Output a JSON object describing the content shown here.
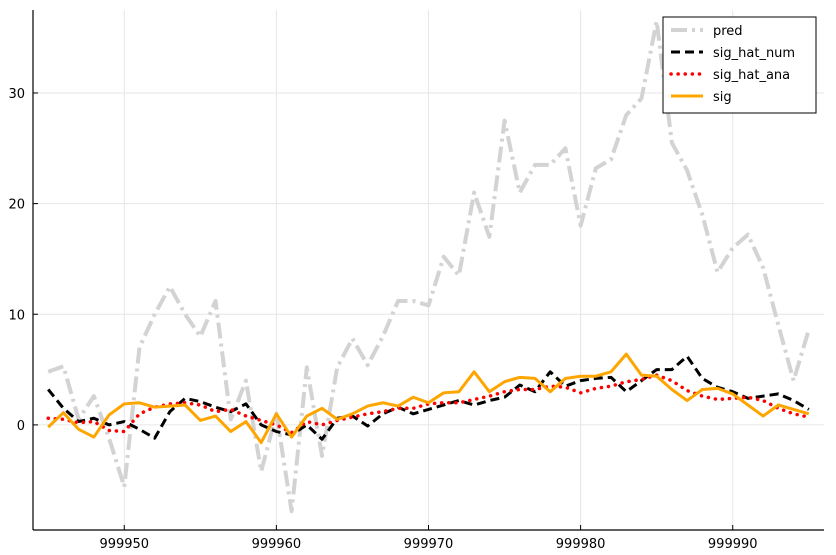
{
  "chart_data": {
    "type": "line",
    "title": "",
    "xlabel": "",
    "ylabel": "",
    "xlim": [
      999944,
      999996
    ],
    "ylim": [
      -9.5,
      37.5
    ],
    "grid": true,
    "legend_position": "top-right",
    "xticks": [
      999950,
      999960,
      999970,
      999980,
      999990
    ],
    "yticks": [
      0,
      10,
      20,
      30
    ],
    "x": [
      999945,
      999946,
      999947,
      999948,
      999949,
      999950,
      999951,
      999952,
      999953,
      999954,
      999955,
      999956,
      999957,
      999958,
      999959,
      999960,
      999961,
      999962,
      999963,
      999964,
      999965,
      999966,
      999967,
      999968,
      999969,
      999970,
      999971,
      999972,
      999973,
      999974,
      999975,
      999976,
      999977,
      999978,
      999979,
      999980,
      999981,
      999982,
      999983,
      999984,
      999985,
      999986,
      999987,
      999988,
      999989,
      999990,
      999991,
      999992,
      999993,
      999994,
      999995
    ],
    "series": [
      {
        "name": "pred",
        "color": "#d3d3d3",
        "style": "dashdot",
        "values": [
          4.8,
          5.3,
          0.5,
          2.6,
          -1.2,
          -5.6,
          7.0,
          10.0,
          12.5,
          10.0,
          8.0,
          11.2,
          0.5,
          4.0,
          -4.2,
          1.0,
          -7.8,
          5.2,
          -2.8,
          5.2,
          7.8,
          5.4,
          8.0,
          11.2,
          11.2,
          10.8,
          15.2,
          13.5,
          21.0,
          17.0,
          27.5,
          21.0,
          23.5,
          23.5,
          25.0,
          18.0,
          23.2,
          24.0,
          28.0,
          29.5,
          36.5,
          25.5,
          23.0,
          19.0,
          13.8,
          16.0,
          17.2,
          14.2,
          9.0,
          4.0,
          8.6
        ]
      },
      {
        "name": "sig_hat_num",
        "color": "#000000",
        "style": "dash",
        "values": [
          3.2,
          1.5,
          0.3,
          0.6,
          0.0,
          0.3,
          -0.4,
          -1.2,
          1.2,
          2.4,
          2.1,
          1.6,
          1.2,
          1.9,
          0.0,
          -0.6,
          -0.9,
          0.0,
          -1.3,
          0.6,
          0.8,
          -0.1,
          1.0,
          1.6,
          1.0,
          1.4,
          1.8,
          2.2,
          1.8,
          2.2,
          2.5,
          3.6,
          3.0,
          4.8,
          3.5,
          4.0,
          4.2,
          4.3,
          3.0,
          4.0,
          5.0,
          5.0,
          6.2,
          4.2,
          3.4,
          3.0,
          2.4,
          2.6,
          2.8,
          2.2,
          1.4
        ]
      },
      {
        "name": "sig_hat_ana",
        "color": "#ff0000",
        "style": "dot",
        "values": [
          0.6,
          0.5,
          0.2,
          0.3,
          -0.5,
          -0.6,
          1.0,
          1.6,
          1.9,
          2.0,
          1.8,
          1.2,
          1.4,
          0.8,
          0.4,
          0.0,
          -0.7,
          0.3,
          0.0,
          0.4,
          0.7,
          1.0,
          1.2,
          1.5,
          1.5,
          1.9,
          2.0,
          2.0,
          2.3,
          2.6,
          3.0,
          3.2,
          3.2,
          3.5,
          3.4,
          2.9,
          3.3,
          3.5,
          3.9,
          4.1,
          4.5,
          4.0,
          3.1,
          2.6,
          2.3,
          2.4,
          2.5,
          2.2,
          1.5,
          1.0,
          0.7
        ]
      },
      {
        "name": "sig",
        "color": "#ffa500",
        "style": "solid",
        "values": [
          -0.2,
          1.1,
          -0.4,
          -1.1,
          0.9,
          1.9,
          2.0,
          1.6,
          1.7,
          1.8,
          0.4,
          0.8,
          -0.6,
          0.3,
          -1.6,
          1.0,
          -1.1,
          0.8,
          1.5,
          0.5,
          1.0,
          1.7,
          2.0,
          1.7,
          2.5,
          2.0,
          2.9,
          3.0,
          4.8,
          3.0,
          3.9,
          4.3,
          4.2,
          3.0,
          4.2,
          4.4,
          4.4,
          4.8,
          6.4,
          4.5,
          4.4,
          3.2,
          2.2,
          3.2,
          3.3,
          2.8,
          1.8,
          0.8,
          1.8,
          1.4,
          1.0
        ]
      }
    ]
  }
}
